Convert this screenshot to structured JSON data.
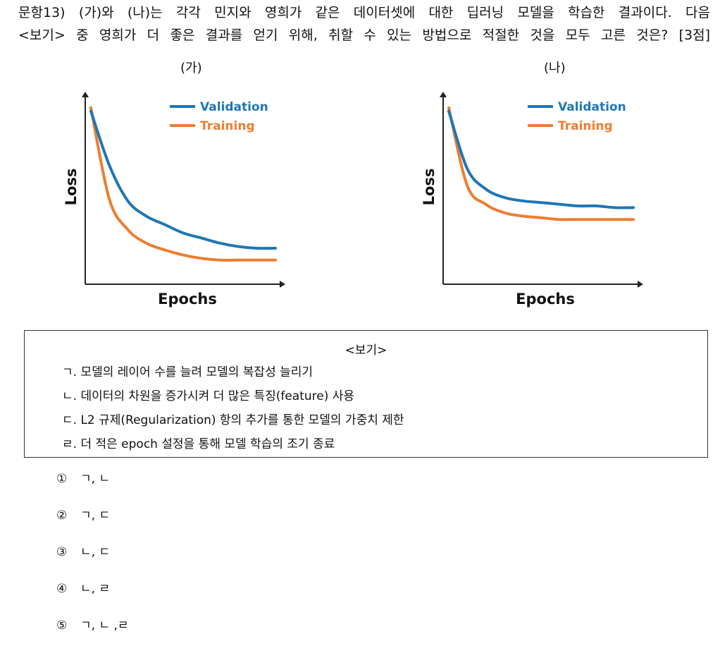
{
  "question": {
    "line1": "문항13) (가)와 (나)는 각각 민지와 영희가 같은 데이터셋에 대한 딥러닝 모델을 학습한 결과이다. 다음",
    "line2": "<보기> 중 영희가 더 좋은 결과를 얻기 위해, 취할 수 있는 방법으로 적절한 것을 모두 고른 것은? [3점]"
  },
  "chart_labels": [
    "(가)",
    "(나)"
  ],
  "chart_data": [
    {
      "type": "line",
      "panel": "(가)",
      "xlabel": "Epochs",
      "ylabel": "Loss",
      "legend": "top-right",
      "grid": false,
      "x": [
        0,
        1,
        2,
        3,
        4,
        5,
        6,
        7,
        8,
        9,
        10
      ],
      "series": [
        {
          "name": "Validation",
          "color": "#1f77b4",
          "values": [
            0.96,
            0.64,
            0.43,
            0.34,
            0.29,
            0.24,
            0.21,
            0.18,
            0.16,
            0.15,
            0.15
          ]
        },
        {
          "name": "Training",
          "color": "#ed7d31",
          "values": [
            0.98,
            0.44,
            0.26,
            0.18,
            0.14,
            0.11,
            0.09,
            0.08,
            0.08,
            0.08,
            0.08
          ]
        }
      ]
    },
    {
      "type": "line",
      "panel": "(나)",
      "xlabel": "Epochs",
      "ylabel": "Loss",
      "legend": "top-right",
      "grid": false,
      "x": [
        0,
        1,
        2,
        3,
        4,
        5,
        6,
        7,
        8,
        9,
        10
      ],
      "series": [
        {
          "name": "Validation",
          "color": "#1f77b4",
          "values": [
            0.96,
            0.62,
            0.5,
            0.45,
            0.43,
            0.42,
            0.41,
            0.4,
            0.4,
            0.39,
            0.39
          ]
        },
        {
          "name": "Training",
          "color": "#ed7d31",
          "values": [
            0.98,
            0.52,
            0.41,
            0.36,
            0.34,
            0.33,
            0.32,
            0.32,
            0.32,
            0.32,
            0.32
          ]
        }
      ]
    }
  ],
  "bogi": {
    "title": "<보기>",
    "items": [
      "ㄱ. 모델의 레이어 수를 늘려 모델의 복잡성 늘리기",
      "ㄴ. 데이터의 차원을 증가시켜 더 많은 특징(feature) 사용",
      "ㄷ. L2 규제(Regularization) 항의 추가를 통한 모델의 가중치 제한",
      "ㄹ. 더 적은 epoch 설정을 통해 모델 학습의 조기 종료"
    ]
  },
  "choices": [
    {
      "num": "①",
      "text": "ㄱ, ㄴ"
    },
    {
      "num": "②",
      "text": "ㄱ, ㄷ"
    },
    {
      "num": "③",
      "text": "ㄴ, ㄷ"
    },
    {
      "num": "④",
      "text": "ㄴ, ㄹ"
    },
    {
      "num": "⑤",
      "text": "ㄱ, ㄴ ,ㄹ"
    }
  ]
}
